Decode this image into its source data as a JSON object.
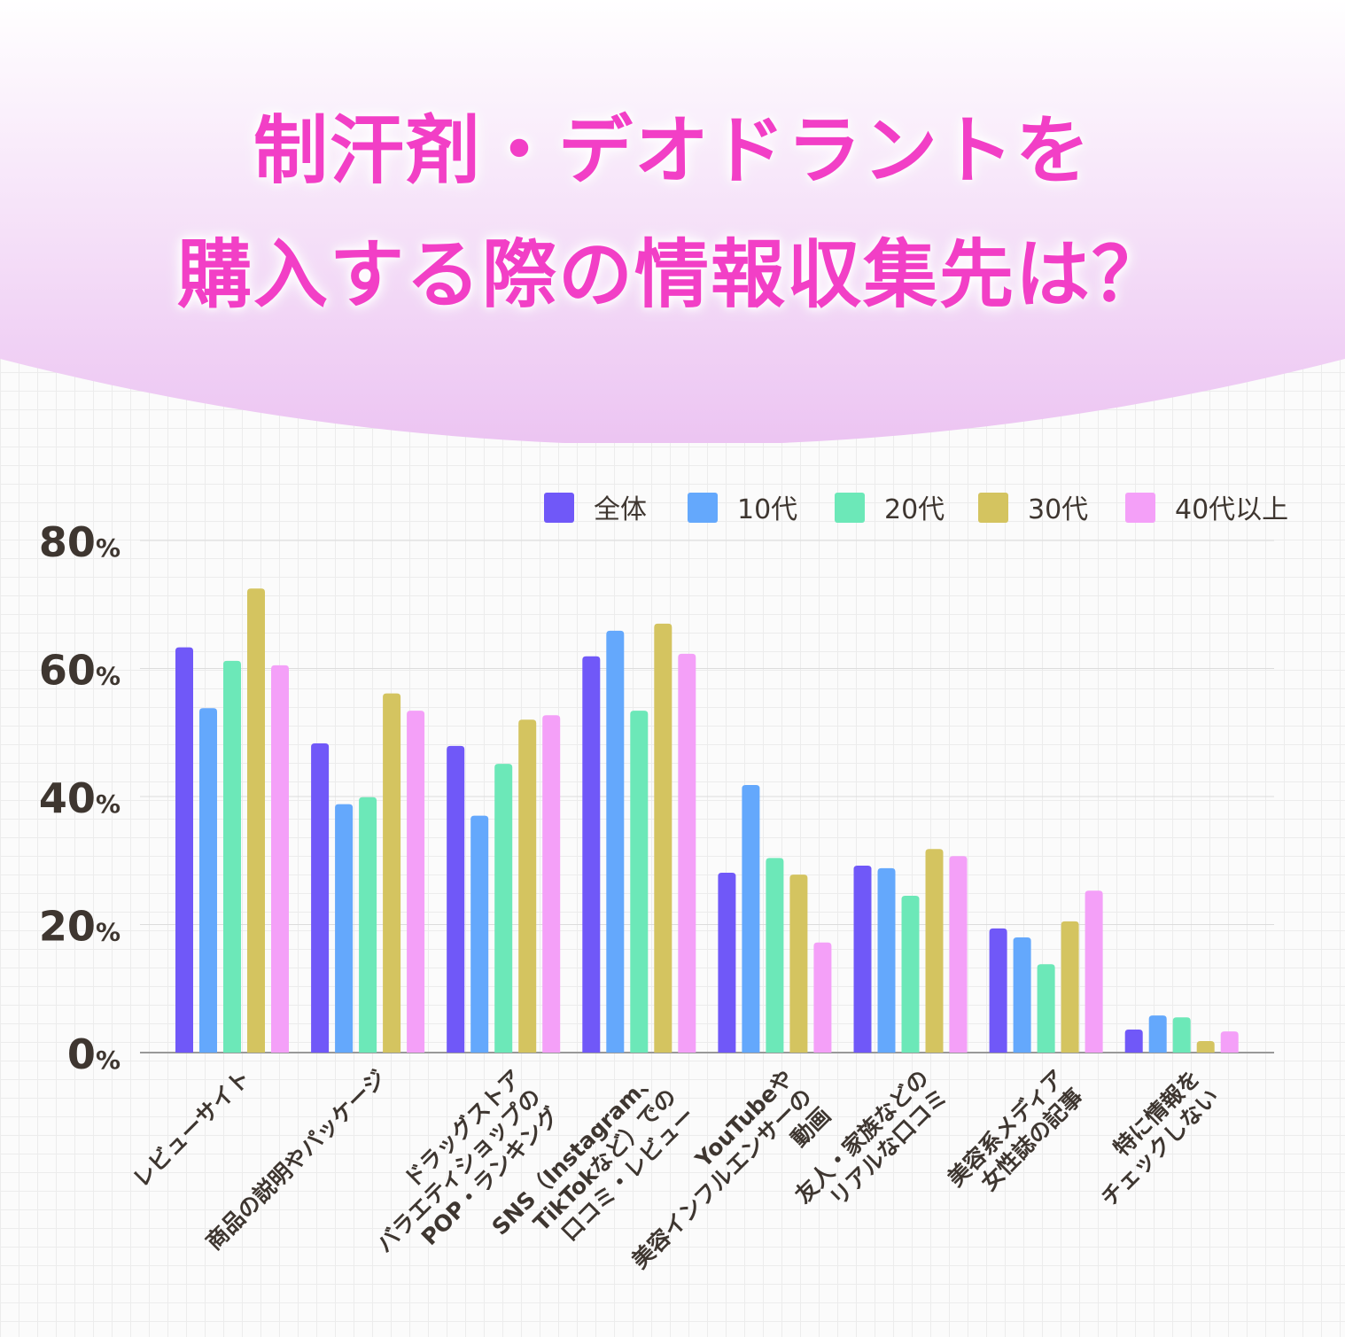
{
  "title": {
    "line1": "制汗剤・デオドラントを",
    "line2": "購入する際の情報収集先は？"
  },
  "chart_data": {
    "type": "bar",
    "ylim": [
      0,
      80
    ],
    "yticks": [
      0,
      20,
      40,
      60,
      80
    ],
    "ytick_unit": "%",
    "grid": true,
    "legend_position": "top-right",
    "categories": [
      [
        "レビューサイト"
      ],
      [
        "商品の説明やパッケージ"
      ],
      [
        "ドラッグストア",
        "バラエティショップの",
        "POP・ランキング"
      ],
      [
        "SNS（Instagram、",
        "TikTokなど）での",
        "口コミ・レビュー"
      ],
      [
        "YouTubeや",
        "美容インフルエンサーの",
        "動画"
      ],
      [
        "友人・家族などの",
        "リアルな口コミ"
      ],
      [
        "美容系メディア",
        "女性誌の記事"
      ],
      [
        "特に情報を",
        "チェックしない"
      ]
    ],
    "series": [
      {
        "name": "全体",
        "color": "#7058f8",
        "values": [
          63.3,
          48.3,
          47.9,
          61.9,
          28.1,
          29.2,
          19.4,
          3.6
        ]
      },
      {
        "name": "10代",
        "color": "#64a8fc",
        "values": [
          53.8,
          38.8,
          37.0,
          65.9,
          41.8,
          28.8,
          18.0,
          5.8
        ]
      },
      {
        "name": "20代",
        "color": "#6ce8b8",
        "values": [
          61.2,
          39.9,
          45.1,
          53.4,
          30.4,
          24.5,
          13.8,
          5.5
        ]
      },
      {
        "name": "30代",
        "color": "#d4c460",
        "values": [
          72.5,
          56.1,
          52.0,
          67.0,
          27.8,
          31.8,
          20.5,
          1.8
        ]
      },
      {
        "name": "40代以上",
        "color": "#f4a0f8",
        "values": [
          60.5,
          53.4,
          52.7,
          62.3,
          17.2,
          30.7,
          25.3,
          3.3
        ]
      }
    ]
  }
}
